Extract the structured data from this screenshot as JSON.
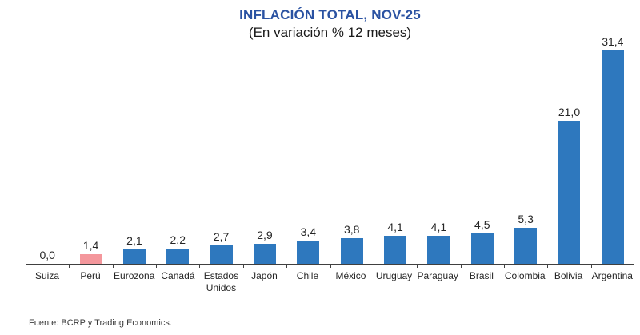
{
  "chart_data": {
    "type": "bar",
    "title": "INFLACIÓN TOTAL, NOV-25",
    "subtitle": "(En variación % 12 meses)",
    "categories": [
      "Suiza",
      "Perú",
      "Eurozona",
      "Canadá",
      "Estados Unidos",
      "Japón",
      "Chile",
      "México",
      "Uruguay",
      "Paraguay",
      "Brasil",
      "Colombia",
      "Bolivia",
      "Argentina"
    ],
    "values": [
      0.0,
      1.4,
      2.1,
      2.2,
      2.7,
      2.9,
      3.4,
      3.8,
      4.1,
      4.1,
      4.5,
      5.3,
      21.0,
      31.4
    ],
    "value_labels": [
      "0,0",
      "1,4",
      "2,1",
      "2,2",
      "2,7",
      "2,9",
      "3,4",
      "3,8",
      "4,1",
      "4,1",
      "4,5",
      "5,3",
      "21,0",
      "31,4"
    ],
    "highlighted_category": "Perú",
    "highlight_index": 1,
    "ylim": [
      0,
      31.4
    ],
    "grid": false,
    "legend": false,
    "data_labels_position": "above-bar",
    "colors": {
      "bar": "#2E78BE",
      "bar_highlight": "#F4979C",
      "title": "#2A52A2",
      "axis": "#404040",
      "text": "#262626"
    },
    "source": "Fuente: BCRP y Trading Economics."
  }
}
